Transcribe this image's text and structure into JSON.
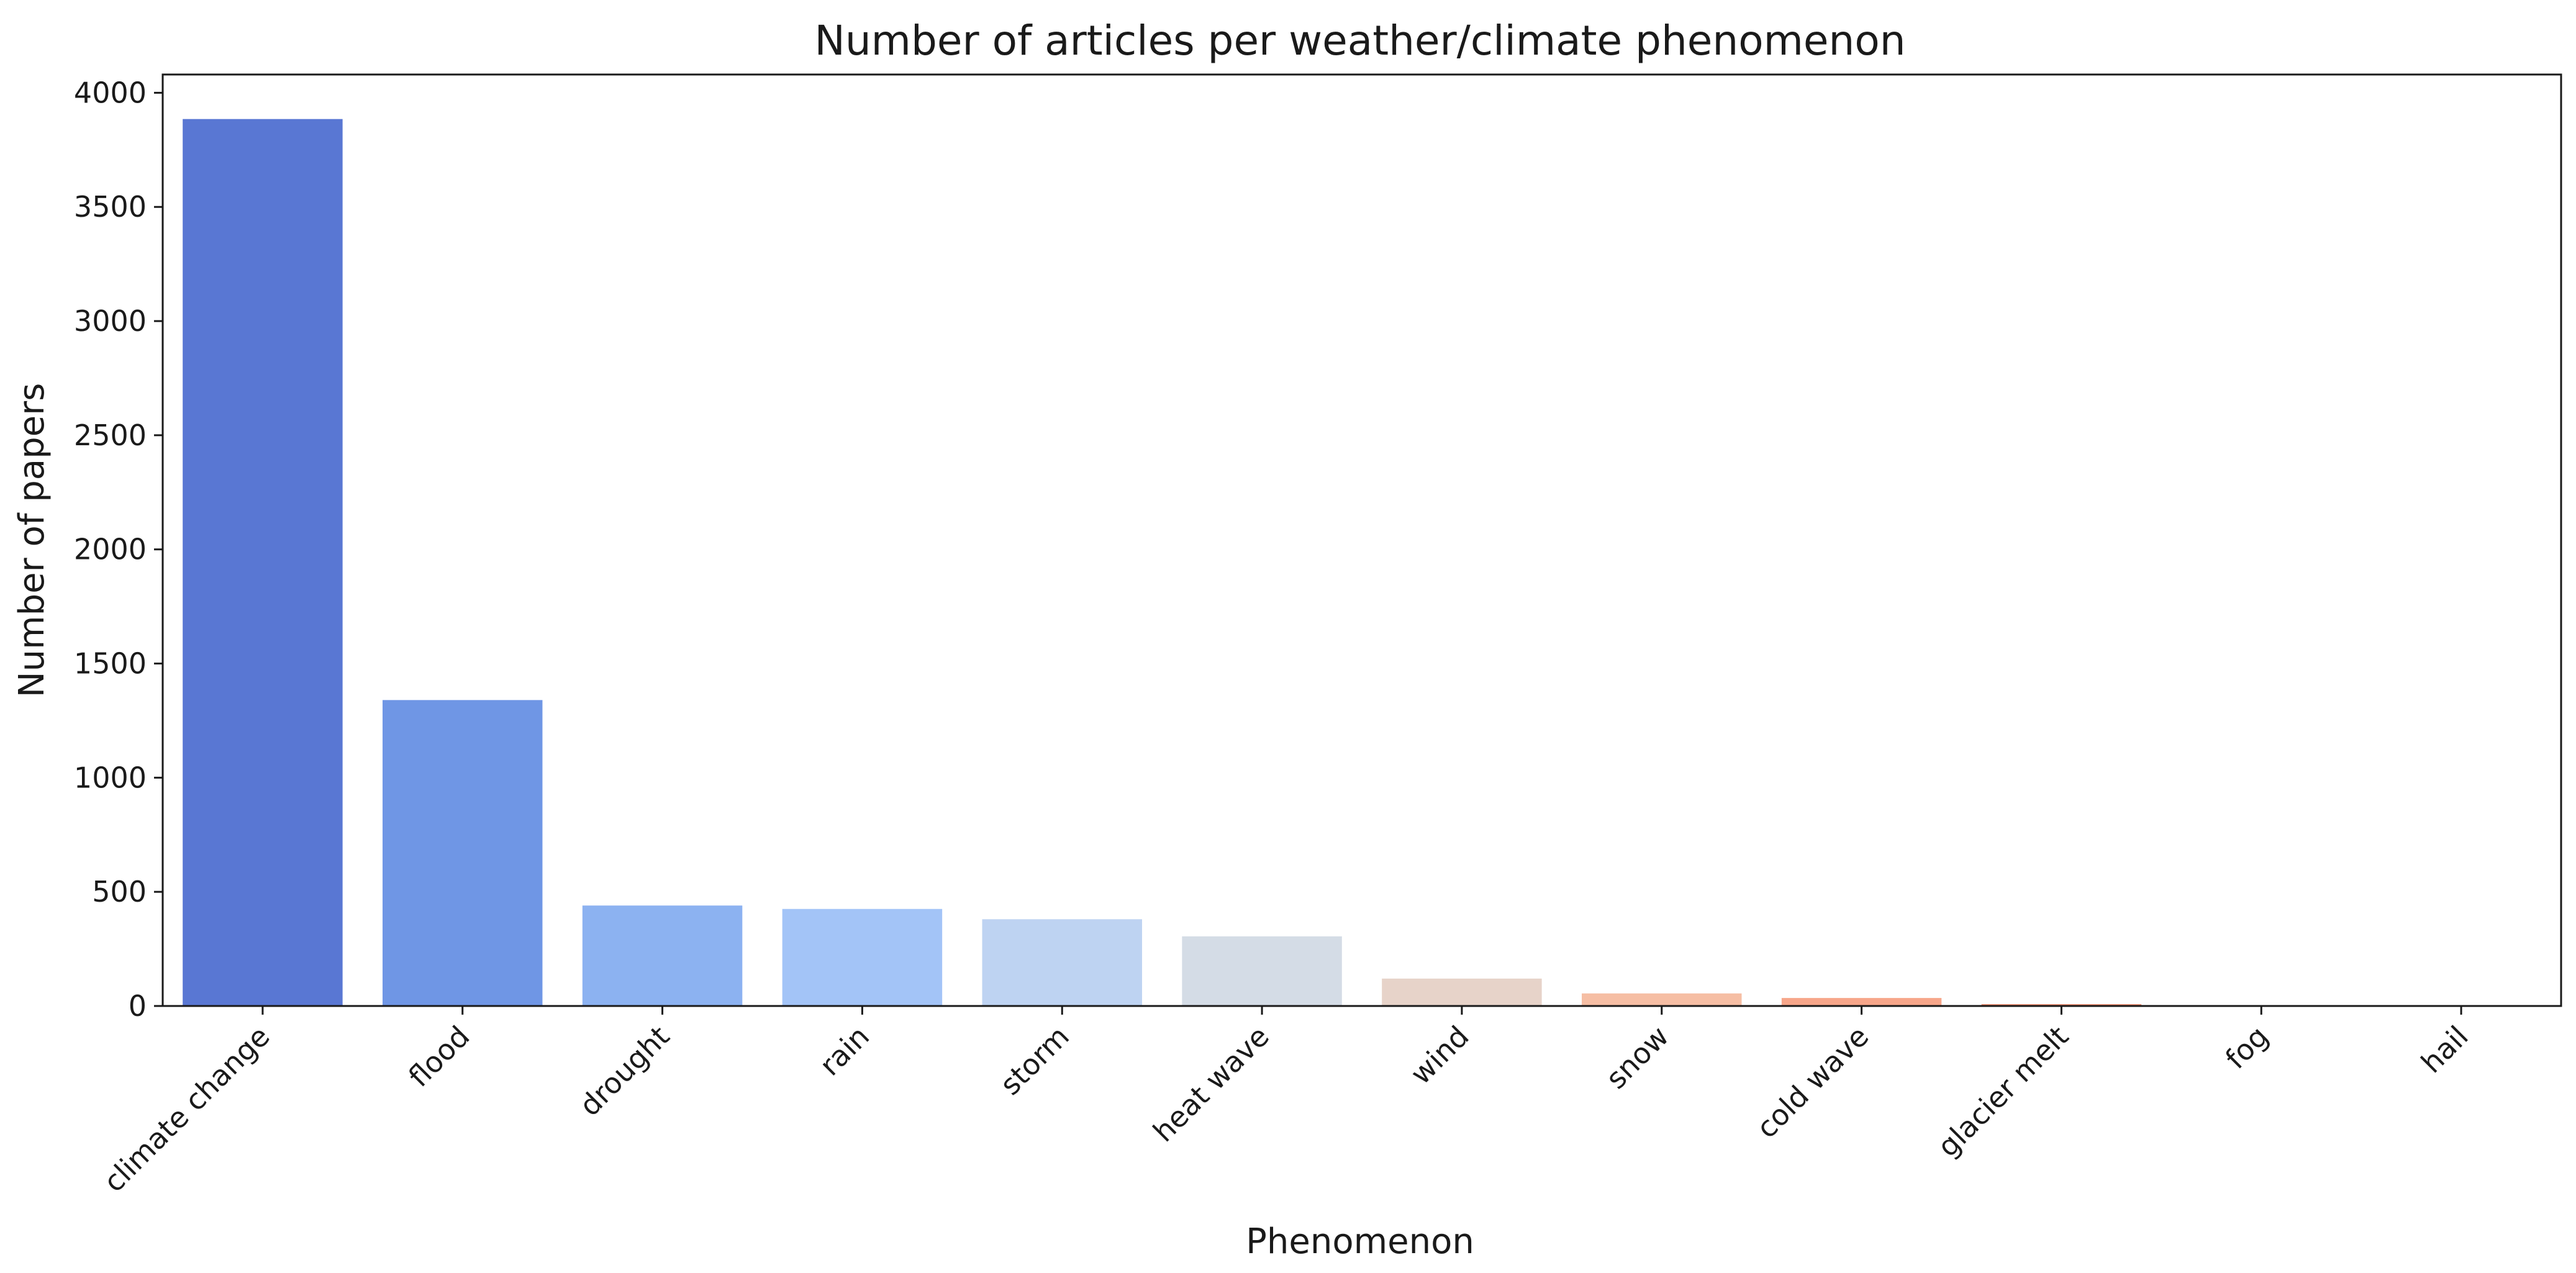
{
  "chart_data": {
    "type": "bar",
    "title": "Number of articles per weather/climate phenomenon",
    "xlabel": "Phenomenon",
    "ylabel": "Number of papers",
    "categories": [
      "climate change",
      "flood",
      "drought",
      "rain",
      "storm",
      "heat wave",
      "wind",
      "snow",
      "cold wave",
      "glacier melt",
      "fog",
      "hail"
    ],
    "values": [
      3885,
      1340,
      440,
      425,
      380,
      305,
      120,
      55,
      35,
      8,
      3,
      2
    ],
    "colors": [
      "#5977d3",
      "#6f96e5",
      "#8cb2f1",
      "#a3c4f7",
      "#bed3f2",
      "#d4dce6",
      "#e7d3c9",
      "#f6bea4",
      "#f7a68a",
      "#f08c6e",
      "#e2715a",
      "#d3584a"
    ],
    "yticks": [
      0,
      500,
      1000,
      1500,
      2000,
      2500,
      3000,
      3500,
      4000
    ],
    "ylim": [
      0,
      4080
    ],
    "grid": false,
    "legend": "none"
  }
}
